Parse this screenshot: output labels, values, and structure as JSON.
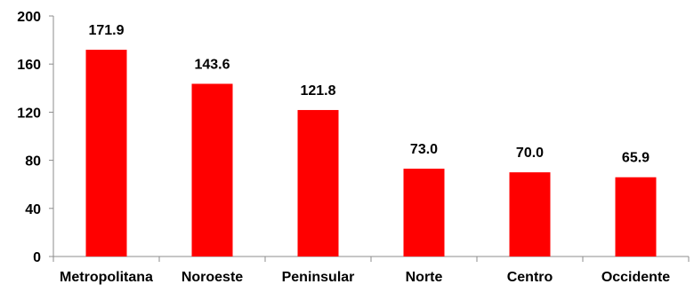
{
  "chart_data": {
    "type": "bar",
    "categories": [
      "Metropolitana",
      "Noroeste",
      "Peninsular",
      "Norte",
      "Centro",
      "Occidente"
    ],
    "values": [
      171.9,
      143.6,
      121.8,
      73.0,
      70.0,
      65.9
    ],
    "value_labels": [
      "171.9",
      "143.6",
      "121.8",
      "73.0",
      "70.0",
      "65.9"
    ],
    "ylim": [
      0,
      200
    ],
    "yticks": [
      0,
      40,
      80,
      120,
      160,
      200
    ],
    "ytick_labels": [
      "0",
      "40",
      "80",
      "120",
      "160",
      "200"
    ],
    "grid": false,
    "legend": "none",
    "title": "",
    "xlabel": "",
    "ylabel": "",
    "colors": {
      "bar": "#ff0000",
      "axis": "#8c8c8c",
      "text": "#000000"
    }
  }
}
